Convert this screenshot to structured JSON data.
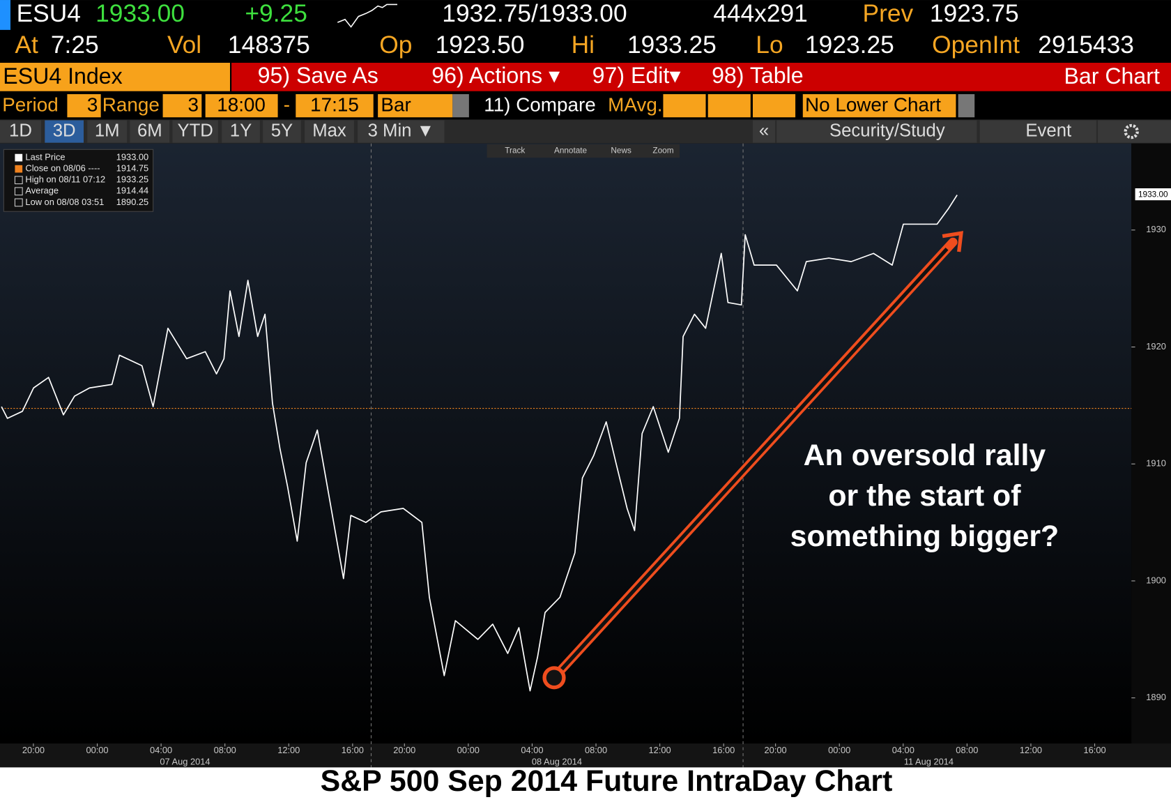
{
  "header": {
    "ticker": "ESU4",
    "last": "1933.00",
    "change": "+9.25",
    "bid_ask": "1932.75/1933.00",
    "size": "444x291",
    "prev_label": "Prev",
    "prev": "1923.75",
    "at_label": "At",
    "time": "7:25",
    "vol_label": "Vol",
    "vol": "148375",
    "op_label": "Op",
    "op": "1923.50",
    "hi_label": "Hi",
    "hi": "1933.25",
    "lo_label": "Lo",
    "lo": "1923.25",
    "oi_label": "OpenInt",
    "oi": "2915433"
  },
  "toolbar": {
    "security": "ESU4 Index",
    "buttons": [
      "95) Save As",
      "96) Actions ▾",
      "97) Edit▾",
      "98) Table"
    ],
    "view": "Bar Chart"
  },
  "settings": {
    "period_label": "Period",
    "period": "3",
    "range_label": "Range",
    "range": "3",
    "start": "18:00",
    "dash": "-",
    "end": "17:15",
    "style": "Bar",
    "compare": "11) Compare",
    "mavg": "MAvg.",
    "lower": "No Lower Chart"
  },
  "tabs": [
    "1D",
    "3D",
    "1M",
    "6M",
    "YTD",
    "1Y",
    "5Y",
    "Max",
    "3 Min ▼"
  ],
  "tools": [
    "«",
    "Security/Study",
    "Event"
  ],
  "chart_tools": [
    "Track",
    "Annotate",
    "News",
    "Zoom"
  ],
  "chart_data": {
    "type": "line",
    "annotation": [
      "An oversold rally",
      "or the start of",
      "something bigger?"
    ],
    "x": [
      0,
      0.37,
      1.31,
      2.01,
      2.95,
      3.88,
      4.58,
      5.52,
      6.92,
      7.39,
      8.8,
      9.5,
      10.43,
      11.6,
      12.77,
      13.47,
      13.94,
      14.32,
      14.88,
      15.44,
      16.05,
      16.51,
      16.98,
      17.45,
      17.92,
      18.53,
      19.09,
      19.79,
      20.49,
      21.43,
      21.89,
      22.83,
      23.77,
      25.17,
      26.34,
      26.81,
      27.74,
      28.44,
      29.85,
      30.78,
      31.72,
      32.42,
      33.12,
      33.59,
      34.06,
      34.99,
      35.93,
      36.4,
      37.1,
      37.89,
      38.5,
      39.2,
      39.67,
      40.14,
      40.84,
      41.78,
      42.48,
      42.71,
      43.42,
      44.12,
      45.1,
      45.52,
      46.36,
      46.6,
      47.16,
      48.56,
      49.87,
      50.43,
      51.84,
      53.24,
      54.64,
      55.81,
      56.51,
      57.45,
      58.62,
      59.32,
      59.88
    ],
    "series": [
      {
        "name": "Last Price",
        "color": "#ffffff",
        "last": {
          "value": 1933,
          "label": "1933.00"
        },
        "values": [
          1914.9,
          1913.9,
          1914.5,
          1916.5,
          1917.4,
          1914.2,
          1915.8,
          1916.5,
          1916.8,
          1919.3,
          1918.4,
          1914.9,
          1921.6,
          1919.0,
          1919.6,
          1917.7,
          1919.0,
          1924.8,
          1920.9,
          1925.7,
          1920.9,
          1922.8,
          1915.2,
          1911.3,
          1908.1,
          1903.4,
          1910.1,
          1912.9,
          1907.5,
          1900.2,
          1905.6,
          1905.0,
          1905.9,
          1906.2,
          1905.0,
          1898.6,
          1891.9,
          1896.6,
          1895.0,
          1896.3,
          1893.8,
          1896.0,
          1890.6,
          1893.5,
          1897.3,
          1898.6,
          1902.4,
          1908.8,
          1910.7,
          1913.6,
          1910.1,
          1906.2,
          1904.3,
          1912.6,
          1914.9,
          1911.0,
          1913.9,
          1920.9,
          1922.8,
          1921.6,
          1928.0,
          1923.8,
          1923.6,
          1929.6,
          1927.0,
          1927.0,
          1924.8,
          1927.3,
          1927.6,
          1927.3,
          1928.0,
          1927.0,
          1930.5,
          1930.5,
          1930.5,
          1931.8,
          1933.0
        ]
      }
    ],
    "stats": [
      {
        "label": "Close on 08/06 ----",
        "value": 1914.75,
        "color": "#f0821e"
      },
      {
        "label": "High on 08/11 07:12",
        "value": 1933.25
      },
      {
        "label": "Average",
        "value": 1914.44
      },
      {
        "label": "Low on 08/08 03:51",
        "value": 1890.25
      }
    ],
    "xlim": [
      0,
      70.8
    ],
    "xticks": [
      {
        "value": 2,
        "label": "20:00"
      },
      {
        "value": 6,
        "label": "00:00"
      },
      {
        "value": 10,
        "label": "04:00"
      },
      {
        "value": 14,
        "label": "08:00"
      },
      {
        "value": 18,
        "label": "12:00"
      },
      {
        "value": 22,
        "label": "16:00"
      },
      {
        "value": 25.25,
        "label": "20:00"
      },
      {
        "value": 29.25,
        "label": "00:00"
      },
      {
        "value": 33.25,
        "label": "04:00"
      },
      {
        "value": 37.25,
        "label": "08:00"
      },
      {
        "value": 41.25,
        "label": "12:00"
      },
      {
        "value": 45.25,
        "label": "16:00"
      },
      {
        "value": 48.5,
        "label": "20:00"
      },
      {
        "value": 52.5,
        "label": "00:00"
      },
      {
        "value": 56.5,
        "label": "04:00"
      },
      {
        "value": 60.5,
        "label": "08:00"
      },
      {
        "value": 64.5,
        "label": "12:00"
      },
      {
        "value": 68.5,
        "label": "16:00"
      }
    ],
    "xdates": [
      {
        "value": 11.5,
        "label": "07 Aug 2014"
      },
      {
        "value": 34.8,
        "label": "08 Aug 2014"
      },
      {
        "value": 58.1,
        "label": "11 Aug 2014"
      }
    ],
    "ylim": [
      1886.1,
      1937.4
    ],
    "yticks": [
      1890,
      1900,
      1910,
      1920,
      1930
    ]
  },
  "caption": "S&P 500 Sep 2014 Future IntraDay Chart"
}
